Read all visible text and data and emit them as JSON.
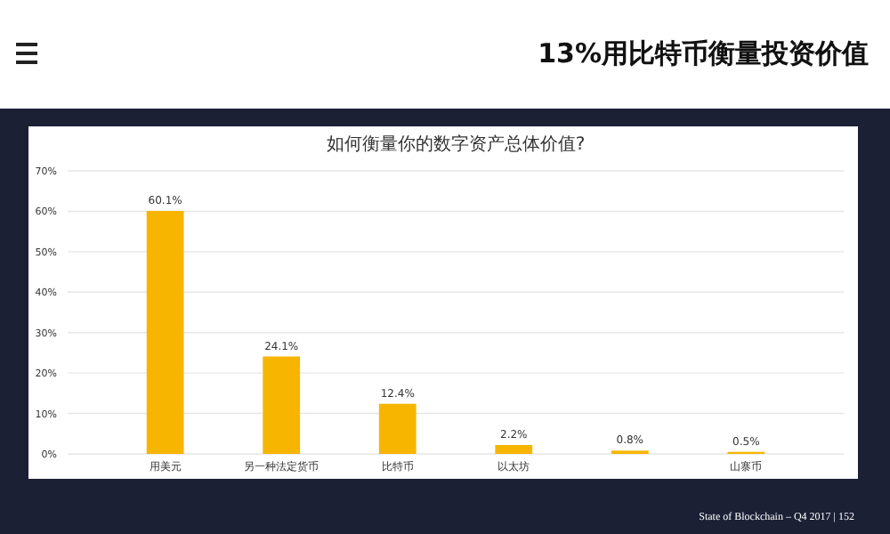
{
  "chart_data": {
    "type": "bar",
    "title": "如何衡量你的数字资产总体价值?",
    "subtitle": "13%用比特币衡量投资价值",
    "categories": [
      "用美元",
      "另一种法定货币",
      "比特币",
      "以太坊",
      null,
      "山寨币"
    ],
    "values": [
      60.1,
      24.1,
      12.4,
      2.2,
      0.8,
      0.5
    ],
    "value_labels": [
      "60.1%",
      "24.1%",
      "12.4%",
      "2.2%",
      "0.8%",
      "0.5%"
    ],
    "color": "#f7b500",
    "ylim": [
      0,
      70
    ],
    "yticks": [
      {
        "value": 0,
        "label": "0%"
      },
      {
        "value": 10,
        "label": "10%"
      },
      {
        "value": 20,
        "label": "20%"
      },
      {
        "value": 30,
        "label": "30%"
      },
      {
        "value": 40,
        "label": "40%"
      },
      {
        "value": 50,
        "label": "50%"
      },
      {
        "value": 60,
        "label": "60%"
      },
      {
        "value": 70,
        "label": "70%"
      }
    ],
    "grid": "y",
    "annotations": [
      "State of Blockchain – Q4 2017 | 152"
    ]
  }
}
